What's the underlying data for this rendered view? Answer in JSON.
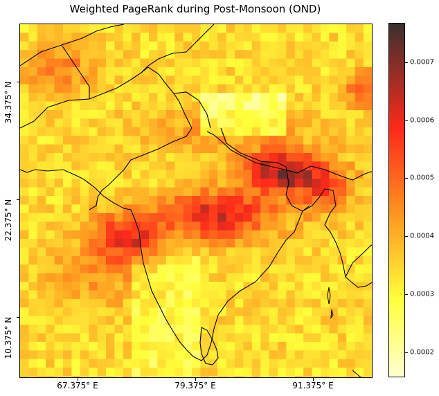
{
  "title": "Weighted PageRank during Post-Monsoon (OND)",
  "map": {
    "y_ticks": [
      "34.375° N",
      "22.375° N",
      "10.375° N"
    ],
    "x_ticks": [
      "67.375° E",
      "79.375° E",
      "91.375° E"
    ],
    "colormap": "hot_r",
    "colorbar_ticks": [
      "0.0007",
      "0.0006",
      "0.0005",
      "0.0004",
      "0.0003",
      "0.0002"
    ],
    "colors": {
      "low": "#ffffd0",
      "mid_low": "#ffff3a",
      "mid": "#ff9a20",
      "mid_high": "#ff2a1a",
      "high": "#3a3030"
    }
  }
}
